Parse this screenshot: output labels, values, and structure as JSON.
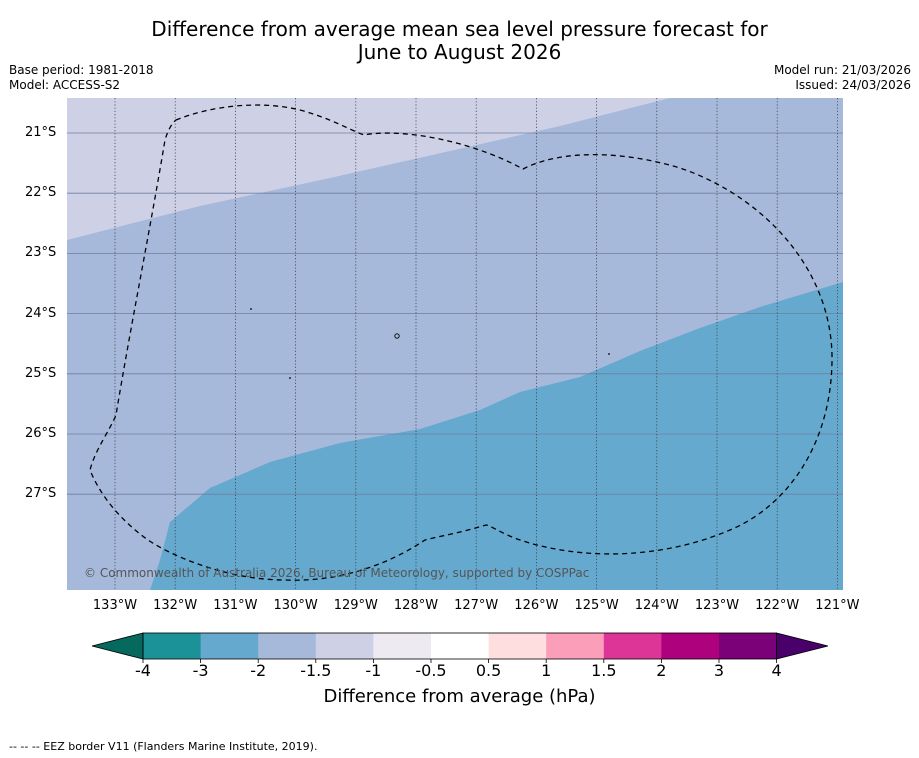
{
  "title_line1": "Difference from average mean sea level pressure forecast for",
  "title_line2": "June to August 2026",
  "base_period": "Base period: 1981-2018",
  "model": "Model: ACCESS-S2",
  "model_run": "Model run: 21/03/2026",
  "issued": "Issued: 24/03/2026",
  "copyright": "© Commonwealth of Australia 2026, Bureau of Meteorology, supported by COSPPac",
  "footer": "--  --  -- EEZ border V11 (Flanders Marine Institute, 2019).",
  "colorbar_title": "Difference from average (hPa)",
  "lat_labels": [
    "21°S",
    "22°S",
    "23°S",
    "24°S",
    "25°S",
    "26°S",
    "27°S"
  ],
  "lon_labels": [
    "133°W",
    "132°W",
    "131°W",
    "130°W",
    "129°W",
    "128°W",
    "127°W",
    "126°W",
    "125°W",
    "124°W",
    "123°W",
    "122°W",
    "121°W"
  ],
  "colorbar_ticks": [
    "-4",
    "-3",
    "-2",
    "-1.5",
    "-1",
    "-0.5",
    "0.5",
    "1",
    "1.5",
    "2",
    "3",
    "4"
  ],
  "colorbar_colors": [
    "#1b9198",
    "#65a9cf",
    "#a6b9da",
    "#ced0e6",
    "#eeeaf2",
    "#ffffff",
    "#ffdedf",
    "#fb9eb9",
    "#dd3498",
    "#ad017e",
    "#7a0177"
  ],
  "colorbar_low_extend": "#06695e",
  "colorbar_high_extend": "#49006a",
  "field_colors": {
    "band_minus1_5_to_minus1": "#ced0e6",
    "band_minus2_to_minus1_5": "#a6b9da",
    "band_minus3_to_minus2": "#65a9cf"
  }
}
